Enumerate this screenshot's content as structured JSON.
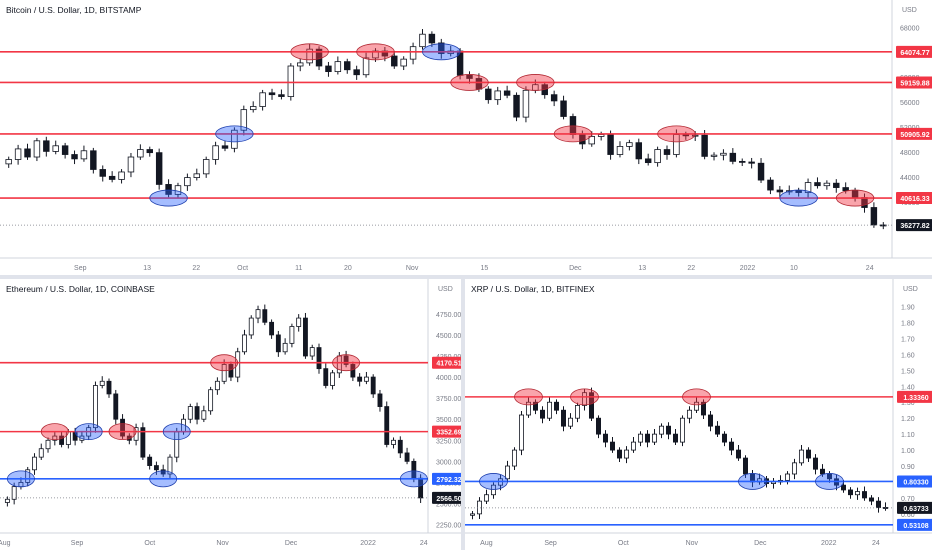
{
  "chart_data": [
    {
      "type": "candlestick",
      "title": "Bitcoin / U.S. Dollar, 1D, BITSTAMP",
      "currency": "USD",
      "ylim": [
        31000,
        69500
      ],
      "y_ticks": [
        68000,
        64000,
        60000,
        56000,
        52000,
        48000,
        44000,
        40000
      ],
      "x_labels": [
        "Sep",
        "13",
        "22",
        "Oct",
        "11",
        "20",
        "Nov",
        "15",
        "Dec",
        "13",
        "22",
        "2022",
        "10",
        "24"
      ],
      "levels": [
        {
          "label": "64074.77",
          "value": 64074.77,
          "color": "#f23645"
        },
        {
          "label": "59159.88",
          "value": 59159.88,
          "color": "#f23645"
        },
        {
          "label": "50905.92",
          "value": 50905.92,
          "color": "#f23645"
        },
        {
          "label": "40616.33",
          "value": 40616.33,
          "color": "#f23645"
        }
      ],
      "last_price": {
        "label": "36277.82",
        "value": 36277.82
      },
      "series": [
        {
          "period": 1,
          "values": [
            46800,
            48500,
            47200,
            49800,
            48100,
            49000,
            47600,
            46900,
            48200,
            45200,
            44100,
            43600,
            44800,
            47200,
            48400,
            47900,
            42800,
            41200,
            42600,
            43900,
            44500,
            46800,
            49000,
            48600,
            51500,
            54800,
            55300,
            57500,
            57200,
            56900,
            61800,
            62300,
            64500,
            61800,
            60900,
            62500,
            61200,
            60400,
            63100,
            64200,
            63400,
            61800,
            62900,
            64900,
            66900,
            65500,
            63800,
            64200,
            60300,
            59800,
            58100,
            56400,
            57800,
            57100,
            53600,
            57900,
            58800,
            57200,
            56200,
            53700,
            50800,
            49300,
            50500,
            50800,
            47600,
            48900,
            49500,
            46900,
            46300,
            48400,
            47600,
            50800,
            50600,
            50700,
            47300,
            47500,
            47800,
            46500,
            46400,
            46200,
            43500,
            41900,
            41600,
            41800,
            41500,
            43100,
            42600,
            43000,
            42300,
            41800,
            40700,
            39100,
            36300,
            36277.82
          ]
        }
      ]
    },
    {
      "type": "candlestick",
      "title": "Ethereum / U.S. Dollar, 1D, COINBASE",
      "currency": "USD",
      "ylim": [
        2150,
        4950
      ],
      "y_ticks": [
        4750,
        4500,
        4250,
        4000,
        3750,
        3500,
        3250,
        3000,
        2750,
        2500,
        2250
      ],
      "x_labels": [
        "Aug",
        "Sep",
        "Oct",
        "Nov",
        "Dec",
        "2022",
        "24"
      ],
      "levels": [
        {
          "label": "4170.51",
          "value": 4170.51,
          "color": "#f23645"
        },
        {
          "label": "3352.69",
          "value": 3352.69,
          "color": "#f23645"
        },
        {
          "label": "2792.32",
          "value": 2792.32,
          "color": "#2962ff"
        }
      ],
      "last_price": {
        "label": "2566.50",
        "value": 2566.5
      },
      "series": [
        {
          "period": 1,
          "values": [
            2550,
            2700,
            2750,
            2900,
            3050,
            3150,
            3250,
            3300,
            3200,
            3350,
            3250,
            3300,
            3400,
            3900,
            3950,
            3800,
            3500,
            3300,
            3250,
            3400,
            3050,
            2950,
            2900,
            2850,
            3050,
            3350,
            3500,
            3650,
            3500,
            3600,
            3850,
            3950,
            4150,
            4000,
            4300,
            4500,
            4700,
            4800,
            4650,
            4500,
            4300,
            4400,
            4600,
            4700,
            4250,
            4350,
            4100,
            3900,
            4050,
            4250,
            4150,
            4000,
            3950,
            4000,
            3800,
            3650,
            3200,
            3250,
            3100,
            3000,
            2800,
            2566.5
          ]
        }
      ]
    },
    {
      "type": "candlestick",
      "title": "XRP / U.S. Dollar, 1D, BITFINEX",
      "currency": "USD",
      "ylim": [
        0.48,
        1.96
      ],
      "y_ticks": [
        1.9,
        1.8,
        1.7,
        1.6,
        1.5,
        1.4,
        1.3,
        1.2,
        1.1,
        1.0,
        0.9,
        0.8,
        0.7,
        0.6
      ],
      "x_labels": [
        "Aug",
        "Sep",
        "Oct",
        "Nov",
        "Dec",
        "2022",
        "24"
      ],
      "levels": [
        {
          "label": "1.33360",
          "value": 1.3336,
          "color": "#f23645"
        },
        {
          "label": "0.80330",
          "value": 0.8033,
          "color": "#2962ff"
        },
        {
          "label": "0.53108",
          "value": 0.53108,
          "color": "#2962ff"
        }
      ],
      "last_price": {
        "label": "0.63733",
        "value": 0.63733
      },
      "series": [
        {
          "period": 1,
          "values": [
            0.6,
            0.68,
            0.72,
            0.78,
            0.82,
            0.9,
            1.0,
            1.22,
            1.3,
            1.25,
            1.2,
            1.3,
            1.25,
            1.15,
            1.2,
            1.28,
            1.36,
            1.2,
            1.1,
            1.05,
            1.0,
            0.95,
            1.0,
            1.05,
            1.1,
            1.05,
            1.1,
            1.15,
            1.1,
            1.05,
            1.2,
            1.25,
            1.3,
            1.22,
            1.15,
            1.1,
            1.05,
            1.0,
            0.95,
            0.85,
            0.8,
            0.82,
            0.79,
            0.8,
            0.81,
            0.85,
            0.92,
            1.0,
            0.95,
            0.88,
            0.85,
            0.82,
            0.78,
            0.75,
            0.72,
            0.74,
            0.7,
            0.68,
            0.64,
            0.63733
          ]
        }
      ]
    }
  ]
}
